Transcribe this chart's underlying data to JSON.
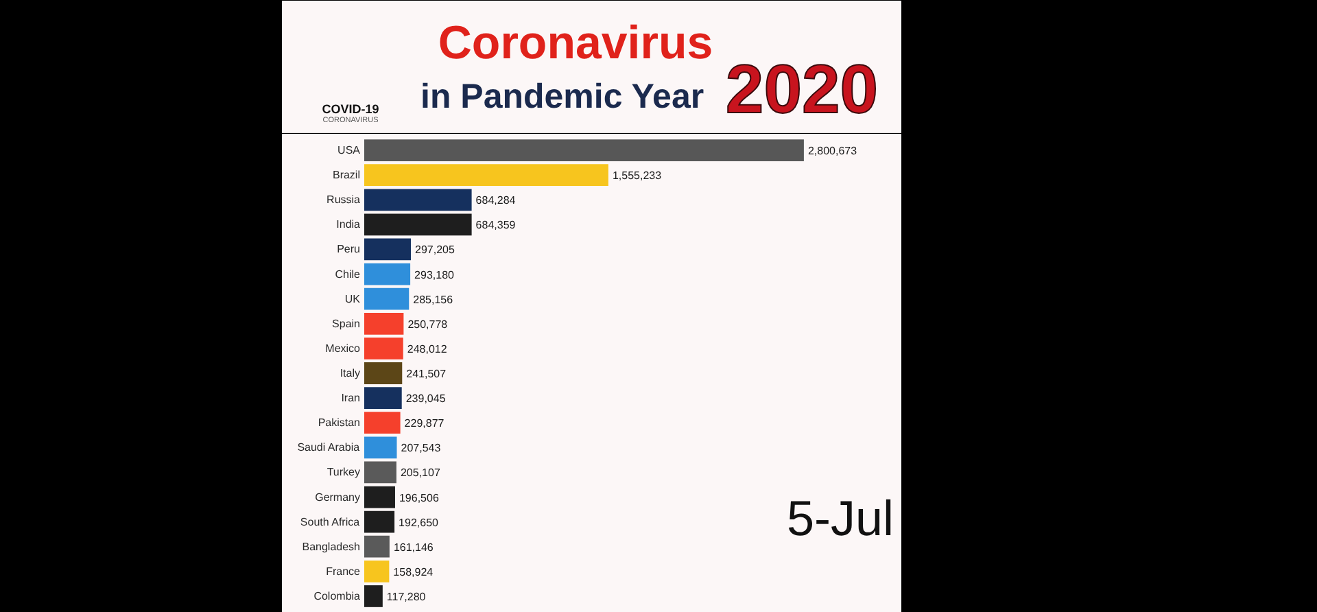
{
  "chart_data": {
    "type": "bar",
    "orientation": "horizontal",
    "title": "Coronavirus",
    "subtitle": "in Pandemic Year",
    "annotations": [
      "2020",
      "COVID-19",
      "CORONAVIRUS",
      "5-Jul"
    ],
    "categories": [
      "USA",
      "Brazil",
      "Russia",
      "India",
      "Peru",
      "Chile",
      "UK",
      "Spain",
      "Mexico",
      "Italy",
      "Iran",
      "Pakistan",
      "Saudi Arabia",
      "Turkey",
      "Germany",
      "South Africa",
      "Bangladesh",
      "France",
      "Colombia"
    ],
    "values": [
      2800673,
      1555233,
      684284,
      684359,
      297205,
      293180,
      285156,
      250778,
      248012,
      241507,
      239045,
      229877,
      207543,
      205107,
      196506,
      192650,
      161146,
      158924,
      117280
    ],
    "value_labels": [
      "2,800,673",
      "1,555,233",
      "684,284",
      "684,359",
      "297,205",
      "293,180",
      "285,156",
      "250,778",
      "248,012",
      "241,507",
      "239,045",
      "229,877",
      "207,543",
      "205,107",
      "196,506",
      "192,650",
      "161,146",
      "158,924",
      "117,280"
    ],
    "colors": [
      "#575757",
      "#f7c51e",
      "#15305e",
      "#1e1e1e",
      "#15305e",
      "#2f8fdb",
      "#2f8fdb",
      "#f5402c",
      "#f5402c",
      "#5c4617",
      "#15305e",
      "#f5402c",
      "#2f8fdb",
      "#5a5a5a",
      "#1e1e1e",
      "#1e1e1e",
      "#5a5a5a",
      "#f7c51e",
      "#1e1e1e"
    ]
  }
}
